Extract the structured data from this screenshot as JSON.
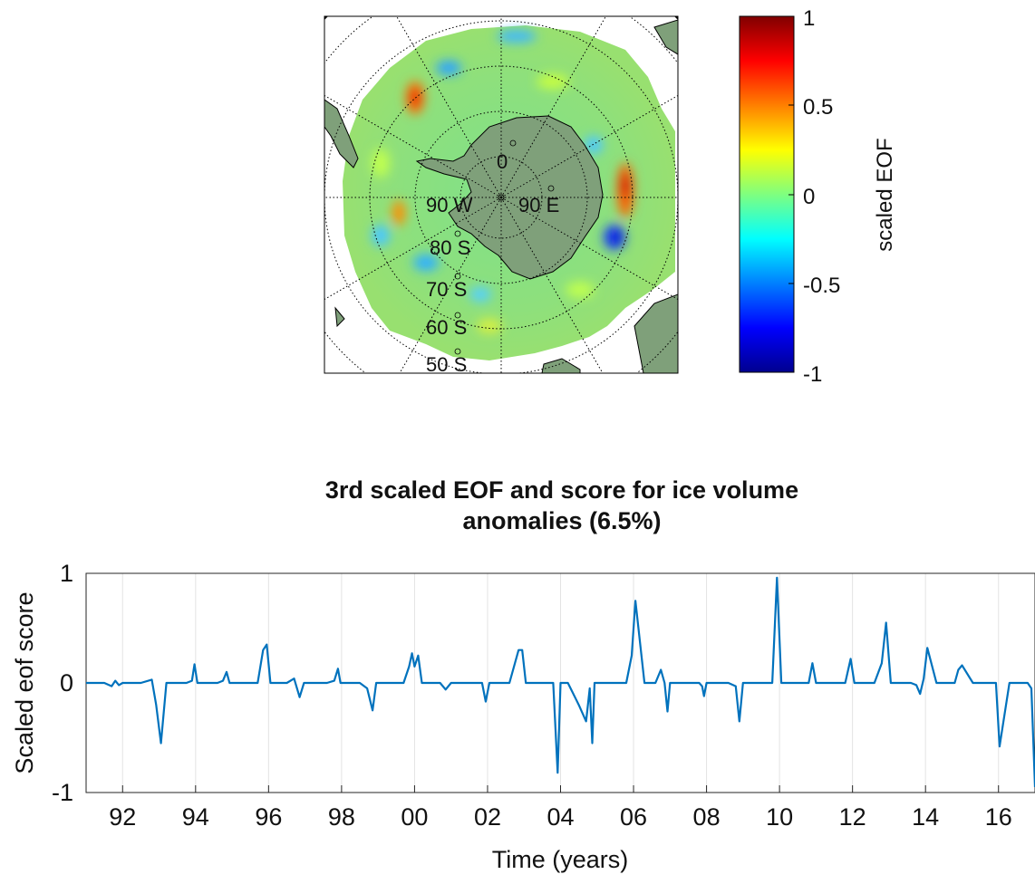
{
  "map": {
    "lat_labels": [
      "80 S",
      "70 S",
      "60 S",
      "50 S"
    ],
    "lon_labels": {
      "top": "0",
      "left": "90 W",
      "right": "90 E"
    },
    "colorbar": {
      "label": "scaled EOF",
      "ticks": [
        "1",
        "0.5",
        "0",
        "-0.5",
        "-1"
      ],
      "range": [
        -1,
        1
      ],
      "colormap": "jet"
    },
    "colors": {
      "land": "#7fa07a",
      "coast": "#000000",
      "grid": "#000000"
    }
  },
  "chart_data": {
    "type": "line",
    "title_lines": [
      "3rd scaled EOF and score for ice volume",
      "anomalies (6.5%)"
    ],
    "xlabel": "Time (years)",
    "ylabel": "Scaled eof score",
    "x_ticks": [
      "92",
      "94",
      "96",
      "98",
      "00",
      "02",
      "04",
      "06",
      "08",
      "10",
      "12",
      "14",
      "16"
    ],
    "y_ticks": [
      "1",
      "0",
      "-1"
    ],
    "xlim": [
      1991.0,
      2017.0
    ],
    "ylim": [
      -1,
      1
    ],
    "grid_x": true,
    "line_color": "#0072bd",
    "series": [
      {
        "x": [
          1991.0,
          1991.5,
          1991.7,
          1991.8,
          1991.9,
          1992.0,
          1992.2,
          1992.5,
          1992.8,
          1992.92,
          1993.05,
          1993.2,
          1993.5,
          1993.75,
          1993.9,
          1993.97,
          1994.05,
          1994.3,
          1994.6,
          1994.75,
          1994.85,
          1994.93,
          1995.2,
          1995.5,
          1995.7,
          1995.85,
          1995.95,
          1996.05,
          1996.2,
          1996.5,
          1996.7,
          1996.85,
          1996.97,
          1997.1,
          1997.3,
          1997.6,
          1997.8,
          1997.9,
          1997.97,
          1998.05,
          1998.3,
          1998.5,
          1998.7,
          1998.85,
          1998.95,
          1999.2,
          1999.5,
          1999.7,
          1999.85,
          1999.93,
          2000.0,
          2000.1,
          2000.2,
          2000.35,
          2000.5,
          2000.7,
          2000.85,
          2001.0,
          2001.3,
          2001.6,
          2001.85,
          2001.95,
          2002.05,
          2002.3,
          2002.6,
          2002.85,
          2002.95,
          2003.05,
          2003.3,
          2003.6,
          2003.8,
          2003.92,
          2004.0,
          2004.2,
          2004.5,
          2004.7,
          2004.8,
          2004.87,
          2004.93,
          2005.0,
          2005.3,
          2005.6,
          2005.8,
          2005.95,
          2006.05,
          2006.3,
          2006.6,
          2006.75,
          2006.85,
          2006.93,
          2007.0,
          2007.3,
          2007.6,
          2007.8,
          2007.88,
          2007.93,
          2008.0,
          2008.3,
          2008.6,
          2008.8,
          2008.9,
          2009.0,
          2009.3,
          2009.6,
          2009.8,
          2009.93,
          2010.05,
          2010.3,
          2010.6,
          2010.8,
          2010.9,
          2011.0,
          2011.3,
          2011.6,
          2011.8,
          2011.95,
          2012.05,
          2012.3,
          2012.6,
          2012.8,
          2012.92,
          2013.05,
          2013.3,
          2013.6,
          2013.75,
          2013.85,
          2013.95,
          2014.05,
          2014.3,
          2014.6,
          2014.8,
          2014.9,
          2015.0,
          2015.3,
          2015.6,
          2015.8,
          2015.93,
          2016.03,
          2016.3,
          2016.6,
          2016.8,
          2016.9,
          2017.0
        ],
        "y": [
          0.0,
          0.0,
          -0.03,
          0.02,
          -0.02,
          0.0,
          0.0,
          0.0,
          0.03,
          -0.2,
          -0.55,
          0.0,
          0.0,
          0.0,
          0.02,
          0.17,
          0.0,
          0.0,
          0.0,
          0.02,
          0.1,
          0.0,
          0.0,
          0.0,
          0.0,
          0.3,
          0.35,
          0.0,
          0.0,
          0.0,
          0.04,
          -0.13,
          0.0,
          0.0,
          0.0,
          0.0,
          0.02,
          0.13,
          0.0,
          0.0,
          0.0,
          0.0,
          -0.05,
          -0.25,
          0.0,
          0.0,
          0.0,
          0.0,
          0.15,
          0.27,
          0.15,
          0.25,
          0.0,
          0.0,
          0.0,
          0.0,
          -0.06,
          0.0,
          0.0,
          0.0,
          0.0,
          -0.17,
          0.0,
          0.0,
          0.0,
          0.3,
          0.3,
          0.0,
          0.0,
          0.0,
          0.0,
          -0.82,
          0.0,
          0.0,
          -0.2,
          -0.35,
          -0.05,
          -0.55,
          0.0,
          0.0,
          0.0,
          0.0,
          0.0,
          0.25,
          0.75,
          0.0,
          0.0,
          0.12,
          0.0,
          -0.26,
          0.0,
          0.0,
          0.0,
          0.0,
          -0.03,
          -0.12,
          0.0,
          0.0,
          0.0,
          -0.03,
          -0.35,
          0.0,
          0.0,
          0.0,
          0.0,
          0.96,
          0.0,
          0.0,
          0.0,
          0.0,
          0.18,
          0.0,
          0.0,
          0.0,
          0.0,
          0.22,
          0.0,
          0.0,
          0.0,
          0.18,
          0.55,
          0.0,
          0.0,
          0.0,
          -0.02,
          -0.1,
          0.04,
          0.32,
          0.0,
          0.0,
          0.0,
          0.12,
          0.16,
          0.0,
          0.0,
          0.0,
          0.0,
          -0.58,
          0.0,
          0.0,
          0.0,
          -0.05,
          -0.95
        ]
      }
    ]
  }
}
